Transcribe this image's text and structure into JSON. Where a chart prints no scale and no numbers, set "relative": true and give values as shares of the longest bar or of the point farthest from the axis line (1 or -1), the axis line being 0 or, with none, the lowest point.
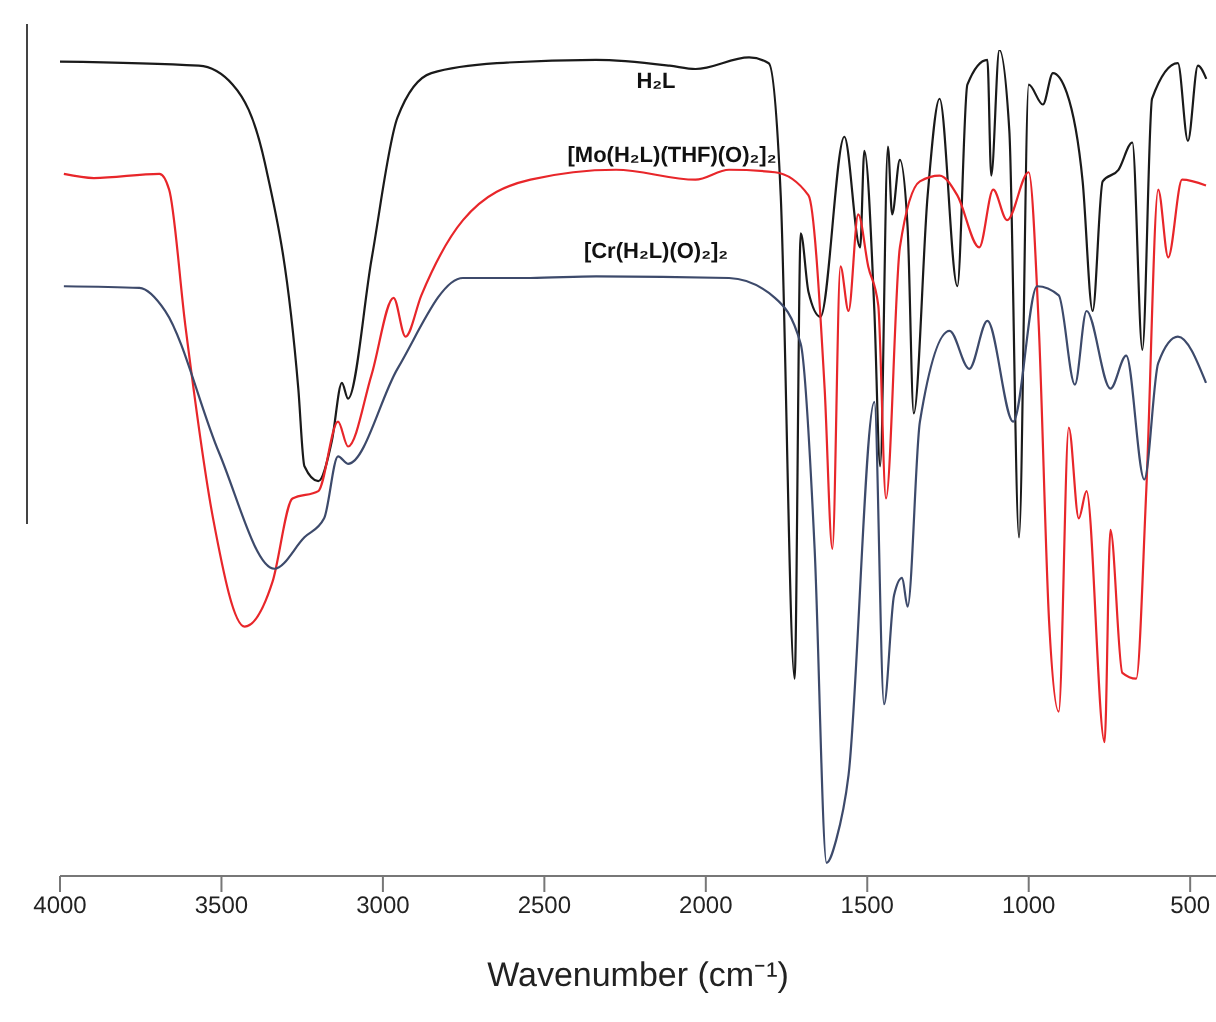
{
  "chart_data": {
    "type": "line",
    "xlabel": "Wavenumber (cm⁻¹)",
    "relative": true,
    "xlim": [
      4000,
      420
    ],
    "xticks": [
      4000,
      3500,
      3000,
      2500,
      2000,
      1500,
      1000,
      500
    ],
    "series": [
      {
        "name": "H₂L",
        "color": "#1a1a1a",
        "x": [
          4000,
          3570,
          3465,
          3366,
          3262,
          3243,
          3200,
          3158,
          3127,
          3108,
          3035,
          2955,
          2850,
          2647,
          2340,
          2112,
          2032,
          1866,
          1805,
          1768,
          1725,
          1706,
          1682,
          1645,
          1571,
          1522,
          1509,
          1478,
          1460,
          1436,
          1423,
          1399,
          1375,
          1356,
          1313,
          1276,
          1221,
          1190,
          1128,
          1116,
          1091,
          1060,
          1030,
          1000,
          956,
          925,
          882,
          833,
          802,
          771,
          722,
          679,
          648,
          618,
          538,
          507,
          476,
          450
        ],
        "values": [
          0.986,
          0.981,
          0.958,
          0.864,
          0.59,
          0.496,
          0.478,
          0.527,
          0.597,
          0.578,
          0.747,
          0.918,
          0.972,
          0.984,
          0.988,
          0.981,
          0.977,
          0.991,
          0.984,
          0.824,
          0.239,
          0.778,
          0.707,
          0.677,
          0.895,
          0.761,
          0.878,
          0.684,
          0.496,
          0.883,
          0.801,
          0.867,
          0.785,
          0.56,
          0.824,
          0.941,
          0.714,
          0.958,
          0.988,
          0.848,
          1.0,
          0.902,
          0.41,
          0.958,
          0.934,
          0.972,
          0.948,
          0.841,
          0.684,
          0.841,
          0.855,
          0.888,
          0.637,
          0.941,
          0.984,
          0.89,
          0.981,
          0.965
        ]
      },
      {
        "name": "[Mo(H₂L)(THF)(O)₂]₂",
        "color": "#e8262a",
        "x": [
          3988,
          3895,
          3692,
          3662,
          3612,
          3526,
          3428,
          3342,
          3280,
          3200,
          3139,
          3108,
          3035,
          2967,
          2930,
          2881,
          2752,
          2543,
          2278,
          2032,
          1928,
          1786,
          1682,
          1632,
          1608,
          1583,
          1558,
          1528,
          1497,
          1466,
          1442,
          1399,
          1337,
          1276,
          1221,
          1153,
          1110,
          1067,
          1000,
          969,
          937,
          907,
          876,
          845,
          821,
          765,
          747,
          710,
          667,
          636,
          599,
          568,
          525,
          451
        ],
        "values": [
          0.85,
          0.845,
          0.85,
          0.831,
          0.667,
          0.433,
          0.302,
          0.356,
          0.457,
          0.466,
          0.55,
          0.52,
          0.607,
          0.7,
          0.653,
          0.703,
          0.794,
          0.843,
          0.855,
          0.843,
          0.855,
          0.852,
          0.824,
          0.59,
          0.396,
          0.738,
          0.684,
          0.801,
          0.738,
          0.691,
          0.457,
          0.761,
          0.841,
          0.848,
          0.824,
          0.761,
          0.831,
          0.794,
          0.852,
          0.667,
          0.309,
          0.199,
          0.543,
          0.433,
          0.466,
          0.162,
          0.419,
          0.246,
          0.239,
          0.466,
          0.831,
          0.749,
          0.843,
          0.836
        ]
      },
      {
        "name": "[Cr(H₂L)(O)₂]₂",
        "color": "#3d4a6b",
        "x": [
          3988,
          3754,
          3674,
          3508,
          3336,
          3243,
          3182,
          3139,
          3108,
          2955,
          2752,
          2543,
          2340,
          1928,
          1786,
          1706,
          1663,
          1626,
          1596,
          1558,
          1478,
          1448,
          1417,
          1392,
          1375,
          1337,
          1245,
          1184,
          1128,
          1048,
          974,
          907,
          857,
          821,
          747,
          698,
          642,
          599,
          538,
          451
        ],
        "values": [
          0.714,
          0.712,
          0.684,
          0.513,
          0.372,
          0.41,
          0.433,
          0.508,
          0.499,
          0.614,
          0.724,
          0.724,
          0.726,
          0.724,
          0.7,
          0.644,
          0.396,
          0.016,
          0.044,
          0.122,
          0.574,
          0.208,
          0.34,
          0.361,
          0.326,
          0.55,
          0.66,
          0.614,
          0.672,
          0.55,
          0.714,
          0.703,
          0.595,
          0.684,
          0.59,
          0.63,
          0.48,
          0.621,
          0.653,
          0.597
        ]
      }
    ]
  }
}
